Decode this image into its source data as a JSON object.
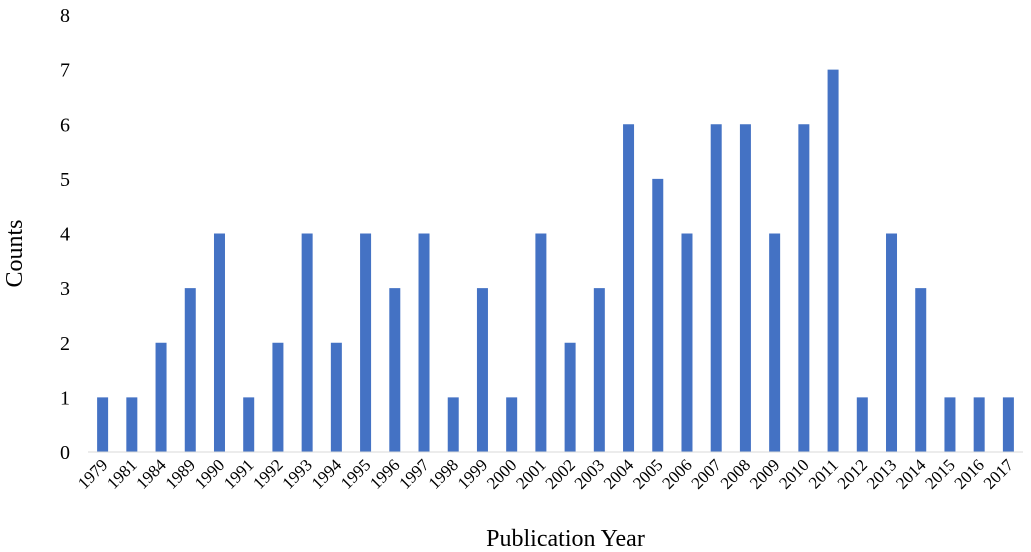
{
  "chart_data": {
    "type": "bar",
    "title": "",
    "xlabel": "Publication Year",
    "ylabel": "Counts",
    "ylim": [
      0,
      8
    ],
    "yticks": [
      "0",
      "1",
      "2",
      "3",
      "4",
      "5",
      "6",
      "7",
      "8"
    ],
    "categories": [
      "1979",
      "1981",
      "1984",
      "1989",
      "1990",
      "1991",
      "1992",
      "1993",
      "1994",
      "1995",
      "1996",
      "1997",
      "1998",
      "1999",
      "2000",
      "2001",
      "2002",
      "2003",
      "2004",
      "2005",
      "2006",
      "2007",
      "2008",
      "2009",
      "2010",
      "2011",
      "2012",
      "2013",
      "2014",
      "2015",
      "2016",
      "2017"
    ],
    "values": [
      1,
      1,
      2,
      3,
      4,
      1,
      2,
      4,
      2,
      4,
      3,
      4,
      1,
      3,
      1,
      4,
      2,
      3,
      6,
      5,
      4,
      6,
      6,
      4,
      6,
      7,
      1,
      4,
      3,
      1,
      1,
      1
    ],
    "bar_color": "#4472C4",
    "grid": false,
    "legend": "none"
  }
}
